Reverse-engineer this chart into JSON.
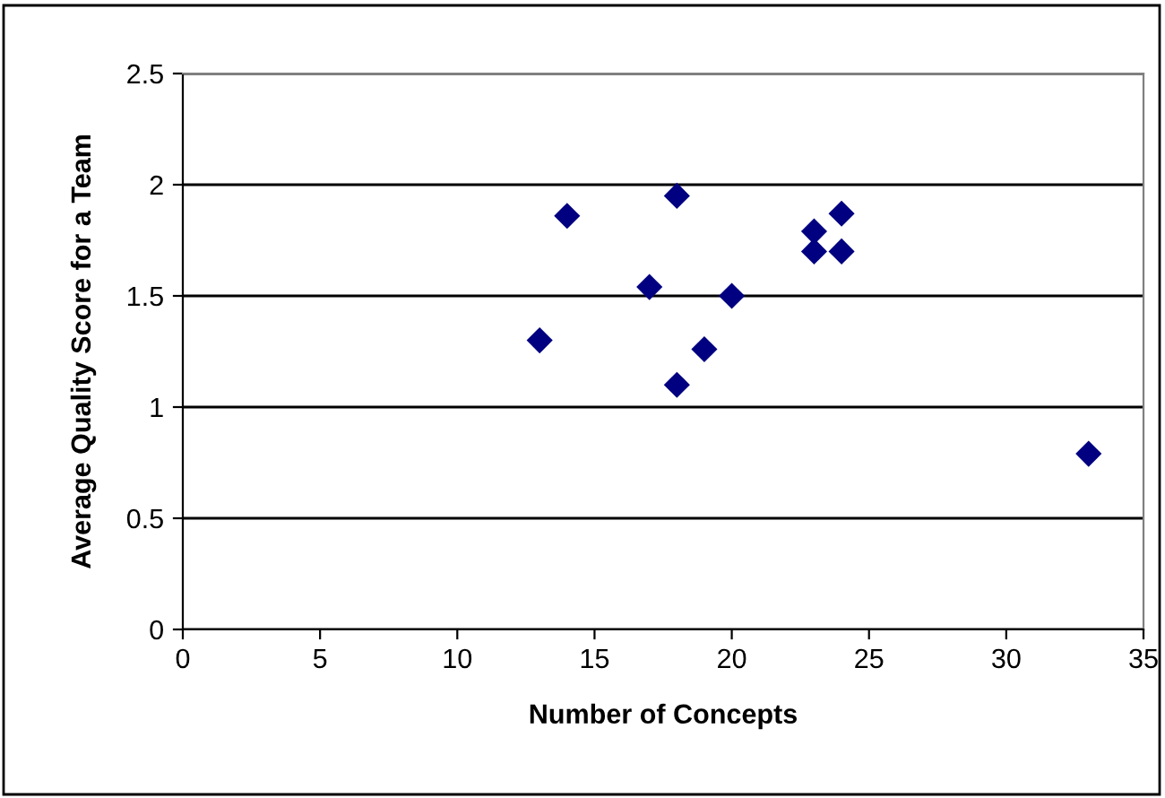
{
  "chart_data": {
    "type": "scatter",
    "xlabel": "Number of Concepts",
    "ylabel": "Average Quality Score for a Team",
    "x": [
      13,
      14,
      17,
      18,
      18,
      19,
      20,
      23,
      23,
      24,
      24,
      33
    ],
    "series": [
      {
        "color": "#000080",
        "values": [
          1.3,
          1.86,
          1.54,
          1.95,
          1.1,
          1.26,
          1.5,
          1.79,
          1.7,
          1.87,
          1.7,
          0.79
        ]
      }
    ],
    "xlim": [
      0,
      35
    ],
    "xticks": [
      0,
      5,
      10,
      15,
      20,
      25,
      30,
      35
    ],
    "ylim": [
      0,
      2.5
    ],
    "yticks": [
      0,
      0.5,
      1,
      1.5,
      2,
      2.5
    ],
    "grid": "y",
    "marker": "diamond",
    "legend": false
  }
}
